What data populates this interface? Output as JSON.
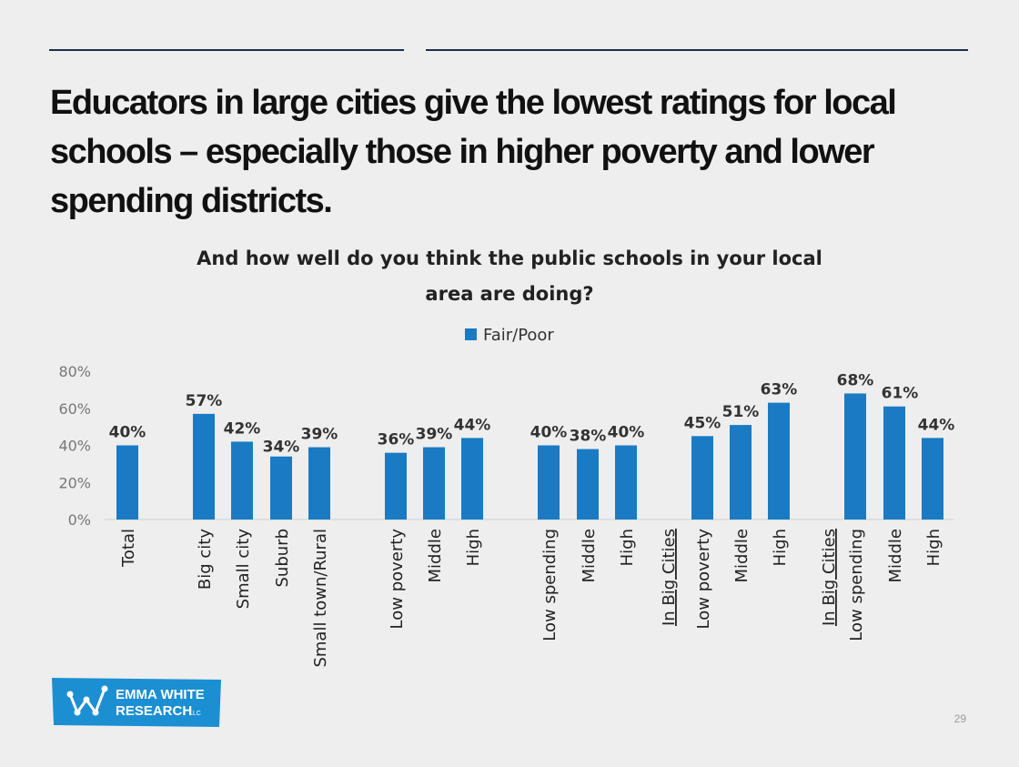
{
  "slide": {
    "title": "Educators in large cities give the lowest ratings for local schools – especially those in higher poverty and lower spending districts.",
    "page_number": "29"
  },
  "logo": {
    "line1": "EMMA WHITE",
    "line2": "RESEARCH",
    "suffix": "LLC",
    "color": "#1b8fd2"
  },
  "chart_data": {
    "type": "bar",
    "title": "And how well do you think the public schools in your local area are doing?",
    "series": [
      {
        "name": "Fair/Poor",
        "color": "#1a7bc4",
        "values": [
          40,
          57,
          42,
          34,
          39,
          36,
          39,
          44,
          40,
          38,
          40,
          45,
          51,
          63,
          68,
          61,
          44
        ]
      }
    ],
    "categories": [
      "Total",
      "Big city",
      "Small city",
      "Suburb",
      "Small town/Rural",
      "Low poverty",
      "Middle",
      "High",
      "Low spending",
      "Middle",
      "High",
      "Low poverty",
      "Middle",
      "High",
      "Low spending",
      "Middle",
      "High"
    ],
    "data_labels": [
      "40%",
      "57%",
      "42%",
      "34%",
      "39%",
      "36%",
      "39%",
      "44%",
      "40%",
      "38%",
      "40%",
      "45%",
      "51%",
      "63%",
      "68%",
      "61%",
      "44%"
    ],
    "group_labels": [
      "In Big Cities",
      "In Big Cities"
    ],
    "y_ticks": [
      "0%",
      "20%",
      "40%",
      "60%",
      "80%"
    ],
    "ylim": [
      0,
      80
    ],
    "grid": false,
    "legend_position": "top-center"
  }
}
